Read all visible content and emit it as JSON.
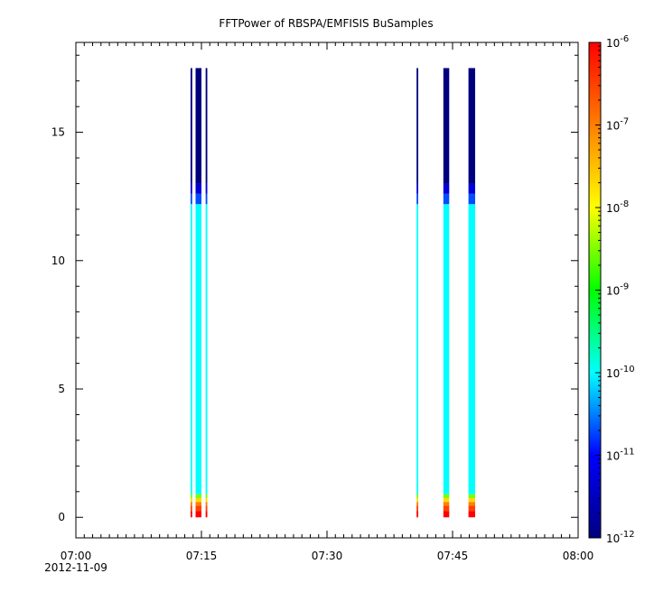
{
  "chart_data": {
    "type": "heatmap",
    "title": "FFTPower of RBSPA/EMFISIS  BuSamples",
    "xlabel": "",
    "ylabel": "",
    "x_range": [
      "07:00",
      "08:00"
    ],
    "x_tick_labels": [
      "07:00",
      "07:15",
      "07:30",
      "07:45",
      "08:00"
    ],
    "x_start_date": "2012-11-09",
    "xlim_minutes": [
      0,
      60
    ],
    "ylim": [
      -0.8,
      18.5
    ],
    "y_ticks": [
      0,
      5,
      10,
      15
    ],
    "y_tick_labels": [
      "0",
      "5",
      "10",
      "15"
    ],
    "colorbar": {
      "scale": "log",
      "range": [
        1e-12,
        1e-06
      ],
      "colormap": [
        "#00007f",
        "#0000ff",
        "#00ffff",
        "#00ff00",
        "#ffff00",
        "#ff7f00",
        "#ff0000"
      ],
      "tick_labels": [
        {
          "base": "10",
          "exp": "-6"
        },
        {
          "base": "10",
          "exp": "-7"
        },
        {
          "base": "10",
          "exp": "-8"
        },
        {
          "base": "10",
          "exp": "-9"
        },
        {
          "base": "10",
          "exp": "-10"
        },
        {
          "base": "10",
          "exp": "-11"
        },
        {
          "base": "10",
          "exp": "-12"
        }
      ]
    },
    "bursts": [
      {
        "start_min": 13.7,
        "end_min": 13.9
      },
      {
        "start_min": 14.3,
        "end_min": 15.0
      },
      {
        "start_min": 15.5,
        "end_min": 15.7
      },
      {
        "start_min": 40.7,
        "end_min": 40.9
      },
      {
        "start_min": 43.9,
        "end_min": 44.6
      },
      {
        "start_min": 46.9,
        "end_min": 47.7
      }
    ],
    "spectrum_profile": [
      {
        "y0": 0.0,
        "y1": 0.25,
        "power": "1e-6"
      },
      {
        "y0": 0.25,
        "y1": 0.45,
        "power": "3e-7"
      },
      {
        "y0": 0.45,
        "y1": 0.6,
        "power": "1e-7"
      },
      {
        "y0": 0.6,
        "y1": 0.75,
        "power": "2e-8"
      },
      {
        "y0": 0.75,
        "y1": 0.9,
        "power": "3e-9"
      },
      {
        "y0": 0.9,
        "y1": 12.2,
        "power": "1e-10"
      },
      {
        "y0": 12.2,
        "y1": 12.6,
        "power": "2e-11"
      },
      {
        "y0": 12.6,
        "y1": 13.0,
        "power": "5e-12"
      },
      {
        "y0": 13.0,
        "y1": 17.5,
        "power": "1e-12"
      }
    ]
  }
}
